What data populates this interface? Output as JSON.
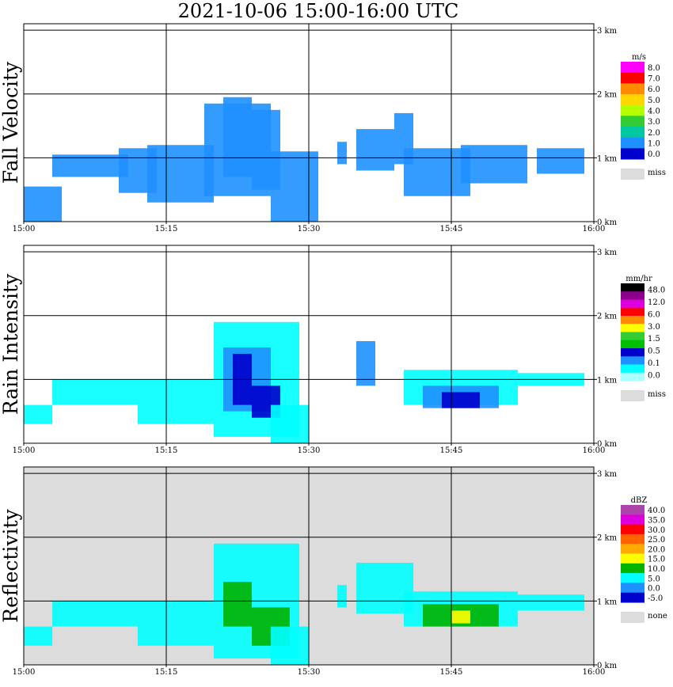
{
  "title": "2021-10-06   15:00-16:00 UTC",
  "chart_data": [
    {
      "type": "heatmap",
      "ylabel": "Fall Velocity",
      "x_ticks": [
        "15:00",
        "15:15",
        "15:30",
        "15:45",
        "16:00"
      ],
      "y_ticks": [
        "0 km",
        "1 km",
        "2 km",
        "3 km"
      ],
      "xlim": [
        "15:00",
        "16:00"
      ],
      "ylim": [
        0,
        3.1
      ],
      "grid": true,
      "background": "#ffffff",
      "colorbar": {
        "unit": "m/s",
        "labels": [
          "8.0",
          "7.0",
          "6.0",
          "5.0",
          "4.0",
          "3.0",
          "2.0",
          "1.0",
          "0.0"
        ],
        "colors": [
          "#ff00ff",
          "#ff0000",
          "#ff8c00",
          "#ffd700",
          "#b4ff00",
          "#32cd32",
          "#00c8a0",
          "#1e90ff",
          "#0000cd"
        ],
        "miss_label": "miss",
        "miss_color": "#dcdcdc"
      },
      "blobs": [
        {
          "t": [
            0,
            4
          ],
          "h": [
            0.0,
            0.55
          ],
          "c": "#1e90ff"
        },
        {
          "t": [
            3,
            11
          ],
          "h": [
            0.7,
            1.05
          ],
          "c": "#1e90ff"
        },
        {
          "t": [
            10,
            14
          ],
          "h": [
            0.45,
            1.15
          ],
          "c": "#1e90ff"
        },
        {
          "t": [
            13,
            20
          ],
          "h": [
            0.3,
            1.2
          ],
          "c": "#1e90ff"
        },
        {
          "t": [
            19,
            26
          ],
          "h": [
            0.4,
            1.85
          ],
          "c": "#1e90ff"
        },
        {
          "t": [
            21,
            24
          ],
          "h": [
            0.7,
            1.95
          ],
          "c": "#1e90ff"
        },
        {
          "t": [
            24,
            27
          ],
          "h": [
            0.5,
            1.75
          ],
          "c": "#1e90ff"
        },
        {
          "t": [
            26,
            31
          ],
          "h": [
            0.0,
            1.1
          ],
          "c": "#1e90ff"
        },
        {
          "t": [
            33,
            34
          ],
          "h": [
            0.9,
            1.25
          ],
          "c": "#1e90ff"
        },
        {
          "t": [
            35,
            39
          ],
          "h": [
            0.8,
            1.45
          ],
          "c": "#1e90ff"
        },
        {
          "t": [
            39,
            41
          ],
          "h": [
            0.9,
            1.7
          ],
          "c": "#1e90ff"
        },
        {
          "t": [
            40,
            47
          ],
          "h": [
            0.4,
            1.15
          ],
          "c": "#1e90ff"
        },
        {
          "t": [
            46,
            53
          ],
          "h": [
            0.6,
            1.2
          ],
          "c": "#1e90ff"
        },
        {
          "t": [
            54,
            59
          ],
          "h": [
            0.75,
            1.15
          ],
          "c": "#1e90ff"
        }
      ]
    },
    {
      "type": "heatmap",
      "ylabel": "Rain Intensity",
      "x_ticks": [
        "15:00",
        "15:15",
        "15:30",
        "15:45",
        "16:00"
      ],
      "y_ticks": [
        "0 km",
        "1 km",
        "2 km",
        "3 km"
      ],
      "xlim": [
        "15:00",
        "16:00"
      ],
      "ylim": [
        0,
        3.1
      ],
      "grid": true,
      "background": "#ffffff",
      "colorbar": {
        "unit": "mm/hr",
        "labels": [
          "48.0",
          "12.0",
          "6.0",
          "3.0",
          "1.5",
          "0.5",
          "0.1",
          "0.0"
        ],
        "colors": [
          "#000000",
          "#8b008b",
          "#dd00dd",
          "#ff0000",
          "#ff8c00",
          "#ffff00",
          "#32cd32",
          "#00c000",
          "#0000cd",
          "#1e90ff",
          "#00ffff",
          "#aaffff"
        ],
        "miss_label": "miss",
        "miss_color": "#dcdcdc"
      },
      "blobs": [
        {
          "t": [
            0,
            3
          ],
          "h": [
            0.3,
            0.6
          ],
          "c": "#00ffff"
        },
        {
          "t": [
            3,
            12
          ],
          "h": [
            0.6,
            1.0
          ],
          "c": "#00ffff"
        },
        {
          "t": [
            12,
            20
          ],
          "h": [
            0.3,
            1.0
          ],
          "c": "#00ffff"
        },
        {
          "t": [
            20,
            29
          ],
          "h": [
            0.1,
            1.9
          ],
          "c": "#00ffff"
        },
        {
          "t": [
            21,
            26
          ],
          "h": [
            0.5,
            1.5
          ],
          "c": "#1e90ff"
        },
        {
          "t": [
            22,
            24
          ],
          "h": [
            0.6,
            1.4
          ],
          "c": "#0000cd"
        },
        {
          "t": [
            24,
            27
          ],
          "h": [
            0.4,
            0.9
          ],
          "c": "#0000cd"
        },
        {
          "t": [
            26,
            30
          ],
          "h": [
            0.0,
            0.6
          ],
          "c": "#00ffff"
        },
        {
          "t": [
            35,
            37
          ],
          "h": [
            0.9,
            1.6
          ],
          "c": "#1e90ff"
        },
        {
          "t": [
            40,
            52
          ],
          "h": [
            0.6,
            1.15
          ],
          "c": "#00ffff"
        },
        {
          "t": [
            42,
            50
          ],
          "h": [
            0.55,
            0.9
          ],
          "c": "#1e90ff"
        },
        {
          "t": [
            44,
            48
          ],
          "h": [
            0.55,
            0.8
          ],
          "c": "#0000cd"
        },
        {
          "t": [
            52,
            59
          ],
          "h": [
            0.9,
            1.1
          ],
          "c": "#00ffff"
        }
      ]
    },
    {
      "type": "heatmap",
      "ylabel": "Reflectivity",
      "x_ticks": [
        "15:00",
        "15:15",
        "15:30",
        "15:45",
        "16:00"
      ],
      "y_ticks": [
        "0 km",
        "1 km",
        "2 km",
        "3 km"
      ],
      "xlim": [
        "15:00",
        "16:00"
      ],
      "ylim": [
        0,
        3.1
      ],
      "grid": true,
      "background": "#dcdcdc",
      "colorbar": {
        "unit": "dBZ",
        "labels": [
          "40.0",
          "35.0",
          "30.0",
          "25.0",
          "20.0",
          "15.0",
          "10.0",
          "5.0",
          "0.0",
          "-5.0"
        ],
        "colors": [
          "#aa44aa",
          "#dd00dd",
          "#ff0000",
          "#ff6400",
          "#ffaa00",
          "#ffff00",
          "#00b400",
          "#00ffff",
          "#1e90ff",
          "#0000cd"
        ],
        "miss_label": "none",
        "miss_color": "#dcdcdc"
      },
      "blobs": [
        {
          "t": [
            0,
            3
          ],
          "h": [
            0.3,
            0.6
          ],
          "c": "#00ffff"
        },
        {
          "t": [
            3,
            12
          ],
          "h": [
            0.6,
            1.0
          ],
          "c": "#00ffff"
        },
        {
          "t": [
            12,
            20
          ],
          "h": [
            0.3,
            1.0
          ],
          "c": "#00ffff"
        },
        {
          "t": [
            20,
            29
          ],
          "h": [
            0.1,
            1.9
          ],
          "c": "#00ffff"
        },
        {
          "t": [
            21,
            24
          ],
          "h": [
            0.6,
            1.3
          ],
          "c": "#00b400"
        },
        {
          "t": [
            24,
            28
          ],
          "h": [
            0.3,
            0.9
          ],
          "c": "#00b400"
        },
        {
          "t": [
            26,
            30
          ],
          "h": [
            0.0,
            0.6
          ],
          "c": "#00ffff"
        },
        {
          "t": [
            33,
            34
          ],
          "h": [
            0.9,
            1.25
          ],
          "c": "#00ffff"
        },
        {
          "t": [
            35,
            41
          ],
          "h": [
            0.8,
            1.6
          ],
          "c": "#00ffff"
        },
        {
          "t": [
            40,
            52
          ],
          "h": [
            0.6,
            1.15
          ],
          "c": "#00ffff"
        },
        {
          "t": [
            42,
            50
          ],
          "h": [
            0.6,
            0.95
          ],
          "c": "#00b400"
        },
        {
          "t": [
            45,
            47
          ],
          "h": [
            0.65,
            0.85
          ],
          "c": "#ffff00"
        },
        {
          "t": [
            52,
            59
          ],
          "h": [
            0.85,
            1.1
          ],
          "c": "#00ffff"
        }
      ]
    }
  ]
}
